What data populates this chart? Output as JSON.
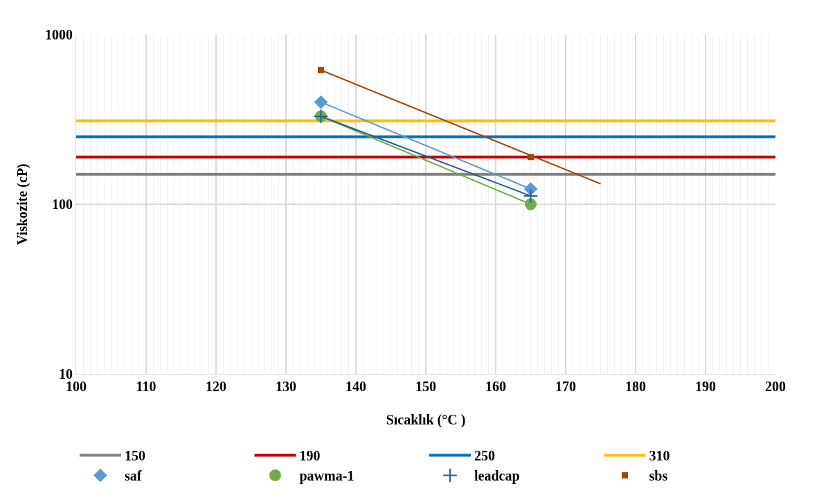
{
  "chart_data": {
    "type": "scatter",
    "xlabel": "Sıcaklık (°C )",
    "ylabel": "Viskozite (cP)",
    "log": "y",
    "xlim": [
      100,
      200
    ],
    "xticks": [
      100,
      110,
      120,
      130,
      140,
      150,
      160,
      170,
      180,
      190,
      200
    ],
    "ylim": [
      10,
      1000
    ],
    "yticks": [
      10,
      100,
      1000
    ],
    "grid": true,
    "legend": "bottom",
    "series": [
      {
        "name": "150",
        "type": "line",
        "color": "#808080",
        "x": [
          100,
          200
        ],
        "values": [
          150,
          150
        ],
        "marker": "none",
        "line_style": "solid"
      },
      {
        "name": "190",
        "type": "line",
        "color": "#c00000",
        "x": [
          100,
          200
        ],
        "values": [
          190,
          190
        ],
        "marker": "none",
        "line_style": "solid"
      },
      {
        "name": "250",
        "type": "line",
        "color": "#0070c0",
        "x": [
          100,
          200
        ],
        "values": [
          250,
          250
        ],
        "marker": "none",
        "line_style": "solid"
      },
      {
        "name": "310",
        "type": "line",
        "color": "#ffc000",
        "x": [
          100,
          200
        ],
        "values": [
          310,
          310
        ],
        "marker": "none",
        "line_style": "solid"
      },
      {
        "name": "saf",
        "color": "#5b9bd5",
        "x": [
          135,
          165
        ],
        "values": [
          400,
          123
        ],
        "marker": "diamond"
      },
      {
        "name": "pawma-1",
        "color": "#70ad47",
        "x": [
          135,
          165
        ],
        "values": [
          330,
          100
        ],
        "marker": "circle"
      },
      {
        "name": "leadcap",
        "color": "#255e91",
        "x": [
          135,
          165
        ],
        "values": [
          330,
          112
        ],
        "marker": "cross"
      },
      {
        "name": "sbs",
        "color": "#9e480e",
        "x": [
          135,
          165
        ],
        "values": [
          618,
          190
        ],
        "marker": "square"
      },
      {
        "type": "line",
        "color": "#5b9bd5",
        "x": [
          135,
          165
        ],
        "values": [
          400,
          123
        ],
        "marker": "none",
        "line_style": "solid"
      },
      {
        "type": "line",
        "color": "#70ad47",
        "x": [
          135,
          165
        ],
        "values": [
          330,
          100
        ],
        "marker": "none",
        "line_style": "solid"
      },
      {
        "type": "line",
        "color": "#255e91",
        "x": [
          135,
          165
        ],
        "values": [
          330,
          112
        ],
        "marker": "none",
        "line_style": "solid"
      },
      {
        "type": "line",
        "color": "#9e480e",
        "x": [
          135,
          175
        ],
        "values": [
          618,
          132
        ],
        "marker": "none",
        "line_style": "solid"
      }
    ]
  }
}
